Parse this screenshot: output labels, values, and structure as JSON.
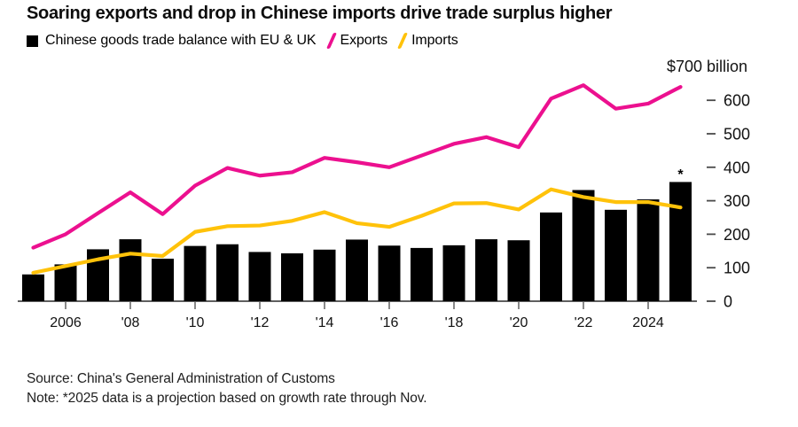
{
  "title": "Soaring exports and drop in Chinese imports drive trade surplus higher",
  "legend": {
    "items": [
      {
        "key": "balance",
        "label": "Chinese goods trade balance with EU & UK",
        "swatch": "square",
        "color": "#000000"
      },
      {
        "key": "exports",
        "label": "Exports",
        "swatch": "slash",
        "color": "#ec108f"
      },
      {
        "key": "imports",
        "label": "Imports",
        "swatch": "slash",
        "color": "#ffc20a"
      }
    ]
  },
  "axis": {
    "unit_label": "$700 billion",
    "y_ticks": [
      600,
      500,
      400,
      300,
      200,
      100,
      0
    ],
    "x_ticks": [
      {
        "index": 1,
        "label": "2006"
      },
      {
        "index": 3,
        "label": "'08"
      },
      {
        "index": 5,
        "label": "'10"
      },
      {
        "index": 7,
        "label": "'12"
      },
      {
        "index": 9,
        "label": "'14"
      },
      {
        "index": 11,
        "label": "'16"
      },
      {
        "index": 13,
        "label": "'18"
      },
      {
        "index": 15,
        "label": "'20"
      },
      {
        "index": 17,
        "label": "'22"
      },
      {
        "index": 19,
        "label": "2024"
      }
    ],
    "projection_marker": "*"
  },
  "footer": {
    "source": "Source: China's General Administration of Customs",
    "note": "Note: *2025 data is a projection based on growth rate through Nov."
  },
  "chart_data": {
    "type": "bar+line",
    "title": "Soaring exports and drop in Chinese imports drive trade surplus higher",
    "unit": "$ billion",
    "ylim": [
      0,
      700
    ],
    "grid": false,
    "legend_position": "top",
    "x": [
      2005,
      2006,
      2007,
      2008,
      2009,
      2010,
      2011,
      2012,
      2013,
      2014,
      2015,
      2016,
      2017,
      2018,
      2019,
      2020,
      2021,
      2022,
      2023,
      2024,
      2025
    ],
    "series": [
      {
        "key": "balance",
        "name": "Chinese goods trade balance with EU & UK",
        "type": "bar",
        "color": "#000000",
        "values": [
          80,
          110,
          155,
          185,
          127,
          165,
          170,
          147,
          143,
          154,
          184,
          166,
          159,
          167,
          185,
          182,
          265,
          332,
          273,
          304,
          356
        ]
      },
      {
        "key": "exports",
        "name": "Exports",
        "type": "line",
        "color": "#ec108f",
        "values": [
          160,
          200,
          263,
          325,
          260,
          345,
          398,
          375,
          385,
          428,
          415,
          400,
          435,
          470,
          490,
          460,
          605,
          645,
          575,
          590,
          640
        ]
      },
      {
        "key": "imports",
        "name": "Imports",
        "type": "line",
        "color": "#ffc20a",
        "values": [
          85,
          105,
          125,
          142,
          135,
          207,
          224,
          226,
          240,
          266,
          233,
          222,
          255,
          292,
          293,
          274,
          334,
          311,
          296,
          296,
          280
        ]
      }
    ],
    "annotations": [
      {
        "x": 2025,
        "text": "*",
        "meaning": "2025 data is a projection based on growth rate through Nov."
      }
    ]
  }
}
